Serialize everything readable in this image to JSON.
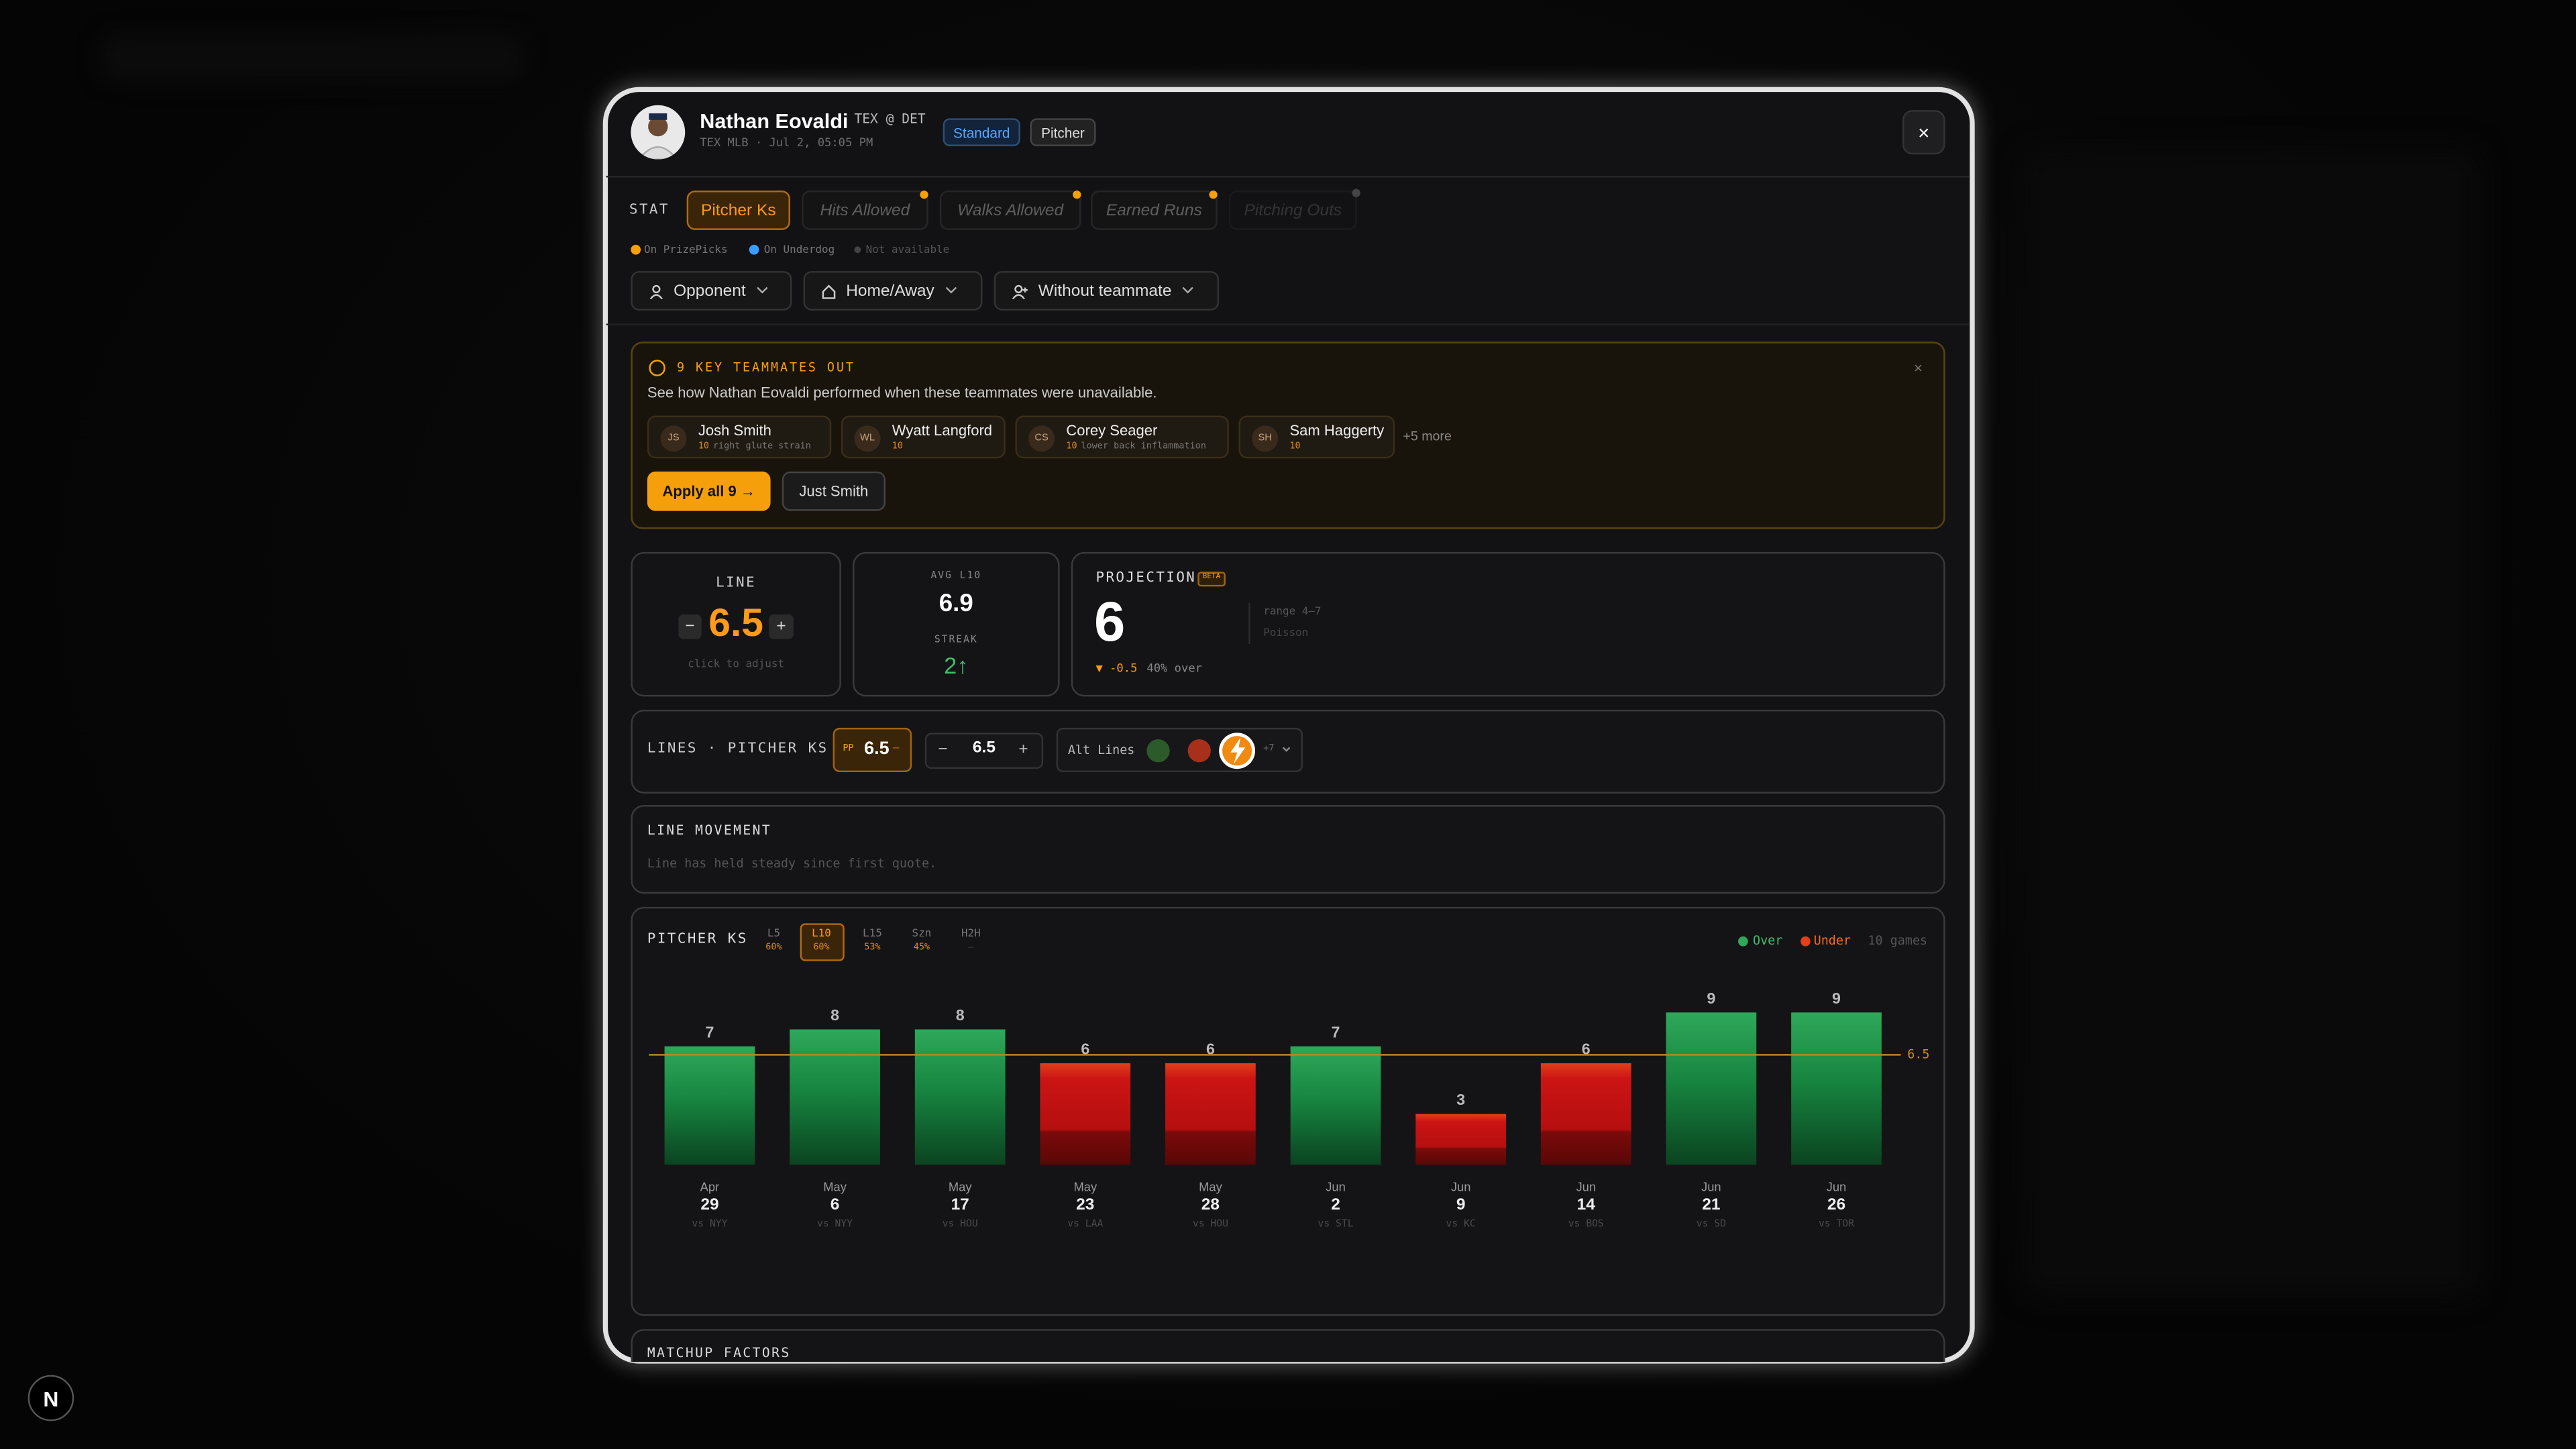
{
  "header": {
    "name": "Nathan Eovaldi",
    "matchup": "TEX @ DET",
    "meta": "TEX MLB · Jul 2, 05:05 PM",
    "badges": [
      "Standard",
      "Pitcher"
    ],
    "close": "×"
  },
  "stats": {
    "label": "STAT",
    "tabs": [
      "Pitcher Ks",
      "Hits Allowed",
      "Walks Allowed",
      "Earned Runs",
      "Pitching Outs"
    ]
  },
  "availability": [
    "On PrizePicks",
    "On Underdog",
    "Not available"
  ],
  "filters": [
    "Opponent",
    "Home/Away",
    "Without teammate"
  ],
  "alert": {
    "title": "9 KEY TEAMMATES OUT",
    "text": "See how Nathan Eovaldi performed when these teammates were unavailable.",
    "close": "×",
    "players": [
      {
        "initials": "JS",
        "name": "Josh Smith",
        "games": 10,
        "note": "right glute strain"
      },
      {
        "initials": "WL",
        "name": "Wyatt Langford",
        "games": 10
      },
      {
        "initials": "CS",
        "name": "Corey Seager",
        "games": 10,
        "note": "lower back inflammation"
      },
      {
        "initials": "SH",
        "name": "Sam Haggerty",
        "games": 10
      }
    ],
    "more": "+5 more",
    "actions": [
      "Apply all 9 →",
      "Just Smith"
    ]
  },
  "line_card": {
    "label": "LINE",
    "value": 6.5,
    "minus": "−",
    "plus": "+",
    "hint": "click to adjust"
  },
  "avg_card": {
    "avg_label": "AVG L10",
    "avg": 6.9,
    "streak_label": "STREAK",
    "streak": "2↑"
  },
  "projection": {
    "label": "PROJECTION",
    "badge": "BETA",
    "value": 6,
    "range": "range 4–7",
    "model": "Poisson",
    "delta": "▼ -0.5",
    "over": "40% over"
  },
  "lines": {
    "label": "LINES · PITCHER KS",
    "pp_tag": "PP",
    "pp_value": 6.5,
    "pp_minus": "−",
    "minus": "−",
    "value": 6.5,
    "plus": "+",
    "alt": "Alt Lines",
    "alt_more": "+7"
  },
  "movement": {
    "title": "LINE MOVEMENT",
    "text": "Line has held steady since first quote."
  },
  "chart": {
    "type": "bar",
    "title": "PITCHER KS",
    "windows": [
      {
        "label": "L5",
        "pct": "60%"
      },
      {
        "label": "L10",
        "pct": "60%"
      },
      {
        "label": "L15",
        "pct": "53%"
      },
      {
        "label": "Szn",
        "pct": "45%"
      },
      {
        "label": "H2H",
        "pct": "–"
      }
    ],
    "legend": [
      "Over",
      "Under"
    ],
    "games": "10 games",
    "over_color": "#2fa85a",
    "under_color": "#e0401a",
    "line": 6.5,
    "categories": [
      {
        "month": "Apr",
        "day": 29,
        "opponent": "vs NYY"
      },
      {
        "month": "May",
        "day": 6,
        "opponent": "vs NYY"
      },
      {
        "month": "May",
        "day": 17,
        "opponent": "vs HOU"
      },
      {
        "month": "May",
        "day": 23,
        "opponent": "vs LAA"
      },
      {
        "month": "May",
        "day": 28,
        "opponent": "vs HOU"
      },
      {
        "month": "Jun",
        "day": 2,
        "opponent": "vs STL"
      },
      {
        "month": "Jun",
        "day": 9,
        "opponent": "vs KC"
      },
      {
        "month": "Jun",
        "day": 14,
        "opponent": "vs BOS"
      },
      {
        "month": "Jun",
        "day": 21,
        "opponent": "vs SD"
      },
      {
        "month": "Jun",
        "day": 26,
        "opponent": "vs TOR"
      }
    ],
    "values": [
      7,
      8,
      8,
      6,
      6,
      7,
      3,
      6,
      9,
      9
    ]
  },
  "footer_section": "MATCHUP FACTORS",
  "logo": "N"
}
